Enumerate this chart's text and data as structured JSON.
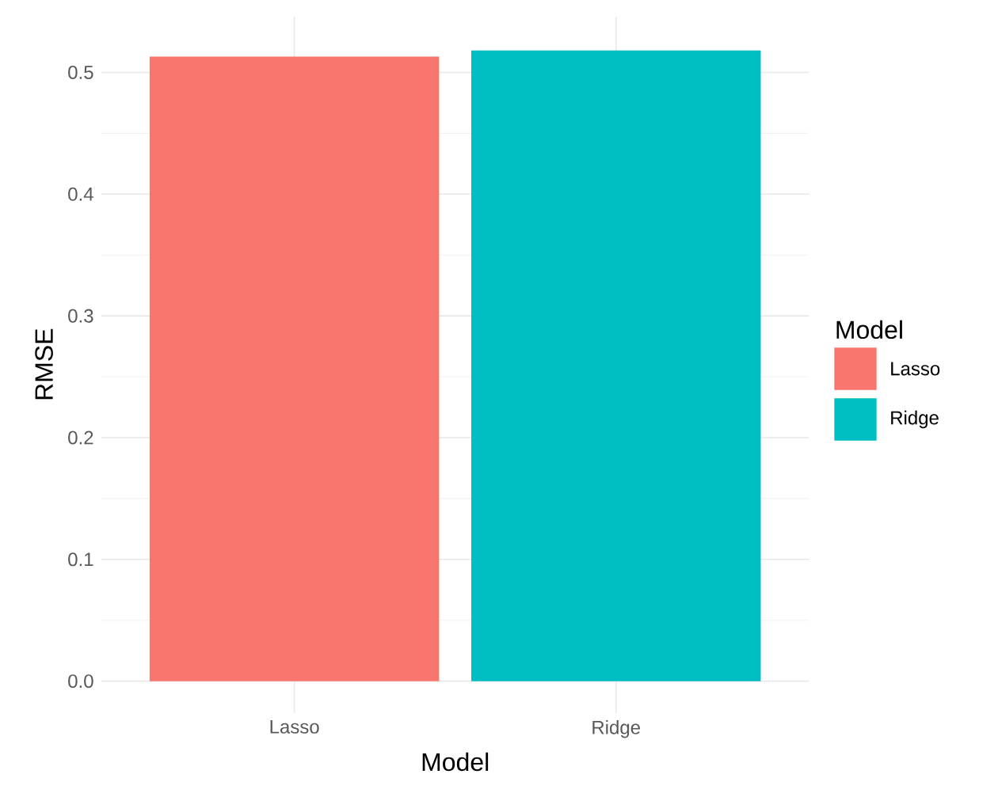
{
  "chart_data": {
    "type": "bar",
    "xlabel": "Model",
    "ylabel": "RMSE",
    "legend_title": "Model",
    "categories": [
      "Lasso",
      "Ridge"
    ],
    "series": [
      {
        "name": "Lasso",
        "color": "#f8766d",
        "values": [
          0.513,
          null
        ]
      },
      {
        "name": "Ridge",
        "color": "#00bfc4",
        "values": [
          null,
          0.518
        ]
      }
    ],
    "ylim": [
      -0.026,
      0.546
    ],
    "yticks": [
      {
        "value": 0,
        "label": "0.0"
      },
      0.1,
      0.2,
      0.3,
      0.4,
      0.5
    ],
    "grid": true,
    "legend": "right"
  }
}
